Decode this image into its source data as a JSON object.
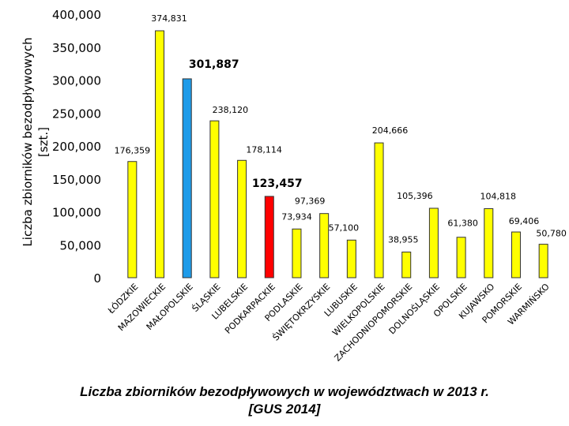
{
  "chart_data": {
    "type": "bar",
    "ylabel_line1": "Liczba zbiorników bezodpływowych",
    "ylabel_line2": "[szt.]",
    "ylim": [
      0,
      400000
    ],
    "yticks": [
      {
        "value": 0,
        "label": "0"
      },
      {
        "value": 50000,
        "label": "50,000"
      },
      {
        "value": 100000,
        "label": "100,000"
      },
      {
        "value": 150000,
        "label": "150,000"
      },
      {
        "value": 200000,
        "label": "200,000"
      },
      {
        "value": 250000,
        "label": "250,000"
      },
      {
        "value": 300000,
        "label": "300,000"
      },
      {
        "value": 350000,
        "label": "350,000"
      },
      {
        "value": 400000,
        "label": "400,000"
      }
    ],
    "grid": false,
    "bars": [
      {
        "category": "ŁÓDZKIE",
        "value": 176359,
        "label": "176,359",
        "color": "#ffff00",
        "bold": false
      },
      {
        "category": "MAZOWIECKIE",
        "value": 374831,
        "label": "374,831",
        "color": "#ffff00",
        "bold": false
      },
      {
        "category": "MAŁOPOLSKIE",
        "value": 301887,
        "label": "301,887",
        "color": "#1e9be9",
        "bold": true
      },
      {
        "category": "ŚLĄSKIE",
        "value": 238120,
        "label": "238,120",
        "color": "#ffff00",
        "bold": false
      },
      {
        "category": "LUBELSKIE",
        "value": 178114,
        "label": "178,114",
        "color": "#ffff00",
        "bold": false
      },
      {
        "category": "PODKARPACKIE",
        "value": 123457,
        "label": "123,457",
        "color": "#ff0000",
        "bold": true
      },
      {
        "category": "PODLASKIE",
        "value": 73934,
        "label": "73,934",
        "color": "#ffff00",
        "bold": false
      },
      {
        "category": "ŚWIĘTOKRZYSKIE",
        "value": 97369,
        "label": "97,369",
        "color": "#ffff00",
        "bold": false
      },
      {
        "category": "LUBUSKIE",
        "value": 57100,
        "label": "57,100",
        "color": "#ffff00",
        "bold": false
      },
      {
        "category": "WIELKOPOLSKIE",
        "value": 204666,
        "label": "204,666",
        "color": "#ffff00",
        "bold": false
      },
      {
        "category": "ZACHODNIOPOMORSKIE",
        "value": 38955,
        "label": "38,955",
        "color": "#ffff00",
        "bold": false
      },
      {
        "category": "DOLNOŚLĄSKIE",
        "value": 105396,
        "label": "105,396",
        "color": "#ffff00",
        "bold": false
      },
      {
        "category": "OPOLSKIE",
        "value": 61380,
        "label": "61,380",
        "color": "#ffff00",
        "bold": false
      },
      {
        "category": "KUJAWSKO",
        "value": 104818,
        "label": "104,818",
        "color": "#ffff00",
        "bold": false
      },
      {
        "category": "POMORSKIE",
        "value": 69406,
        "label": "69,406",
        "color": "#ffff00",
        "bold": false
      },
      {
        "category": "WARMIŃSKO",
        "value": 50780,
        "label": "50,780",
        "color": "#ffff00",
        "bold": false
      }
    ]
  },
  "caption": {
    "line1": "Liczba zbiorników bezodpływowych w województwach w 2013 r.",
    "line2": "[GUS 2014]"
  }
}
